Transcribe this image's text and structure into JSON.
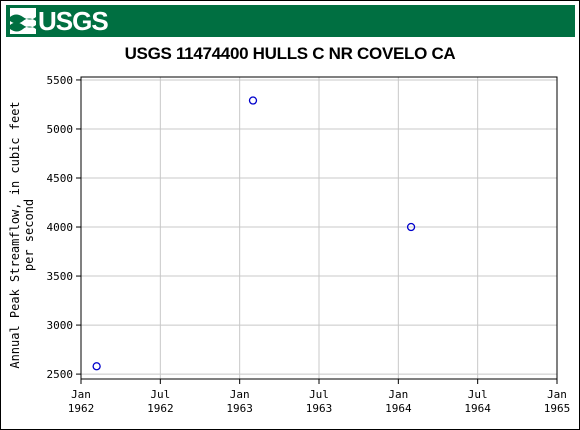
{
  "header": {
    "logo_text": "USGS",
    "logo_icon": "usgs-wave-icon",
    "banner_color": "#006f41"
  },
  "chart_data": {
    "type": "scatter",
    "title": "USGS 11474400 HULLS C NR COVELO CA",
    "xlabel": "",
    "ylabel_lines": [
      "Annual Peak Streamflow, in cubic feet",
      "per second"
    ],
    "x_tick_labels": [
      [
        "Jan",
        "1962"
      ],
      [
        "Jul",
        "1962"
      ],
      [
        "Jan",
        "1963"
      ],
      [
        "Jul",
        "1963"
      ],
      [
        "Jan",
        "1964"
      ],
      [
        "Jul",
        "1964"
      ],
      [
        "Jan",
        "1965"
      ]
    ],
    "x_range": [
      "1962-01-01",
      "1965-01-01"
    ],
    "y_ticks": [
      2500,
      3000,
      3500,
      4000,
      4500,
      5000,
      5500
    ],
    "ylim": [
      2450,
      5530
    ],
    "grid": true,
    "marker_color": "#0000cc",
    "points": [
      {
        "x": "1962-02-06",
        "y": 2580
      },
      {
        "x": "1963-02-01",
        "y": 5290
      },
      {
        "x": "1964-01-31",
        "y": 4000
      }
    ]
  }
}
